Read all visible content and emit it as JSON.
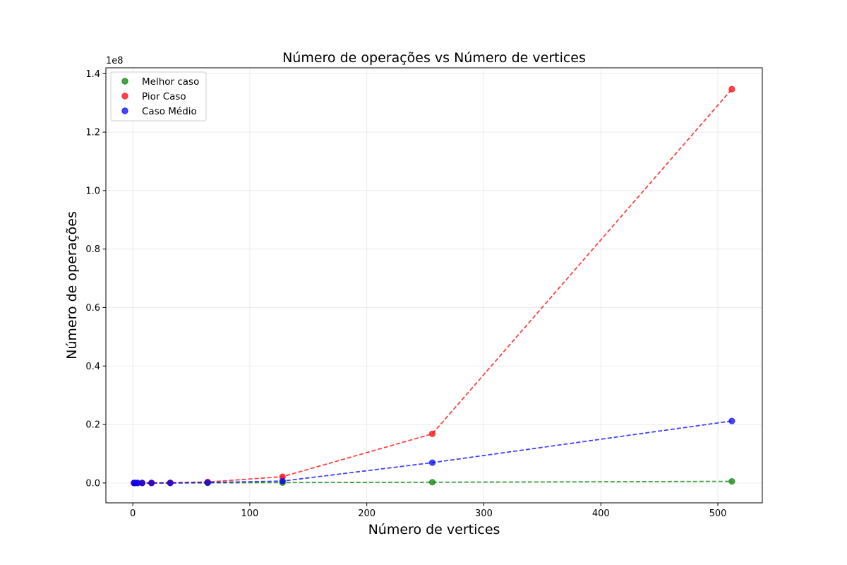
{
  "chart_data": {
    "type": "scatter",
    "title": "Número de operações vs Número de vertices",
    "xlabel": "Número de vertices",
    "ylabel": "Número de operações",
    "y_multiplier_label": "1e8",
    "y_scale": 100000000,
    "xlim": [
      -23,
      538
    ],
    "ylim": [
      -0.068,
      1.42
    ],
    "x_ticks": [
      0,
      100,
      200,
      300,
      400,
      500
    ],
    "y_ticks": [
      0.0,
      0.2,
      0.4,
      0.6,
      0.8,
      1.0,
      1.2,
      1.4
    ],
    "y_tick_labels": [
      "0.0",
      "0.2",
      "0.4",
      "0.6",
      "0.8",
      "1.0",
      "1.2",
      "1.4"
    ],
    "grid": true,
    "legend_position": "top-left",
    "x": [
      1,
      2,
      4,
      8,
      16,
      32,
      64,
      128,
      256,
      512
    ],
    "series": [
      {
        "name": "Melhor caso",
        "color": "#008000",
        "values": [
          0.0,
          0.0,
          0.0,
          0.0,
          0.0,
          0.0,
          0.0004,
          0.0013,
          0.0025,
          0.0055
        ]
      },
      {
        "name": "Pior Caso",
        "color": "#ff0000",
        "values": [
          0.0,
          0.0,
          0.0,
          0.0,
          0.0001,
          0.0006,
          0.0033,
          0.0215,
          0.168,
          1.347
        ]
      },
      {
        "name": "Caso Médio",
        "color": "#0000ff",
        "values": [
          0.0,
          0.0,
          0.0,
          0.0,
          0.0,
          0.0002,
          0.0014,
          0.0065,
          0.0695,
          0.212
        ]
      }
    ]
  }
}
